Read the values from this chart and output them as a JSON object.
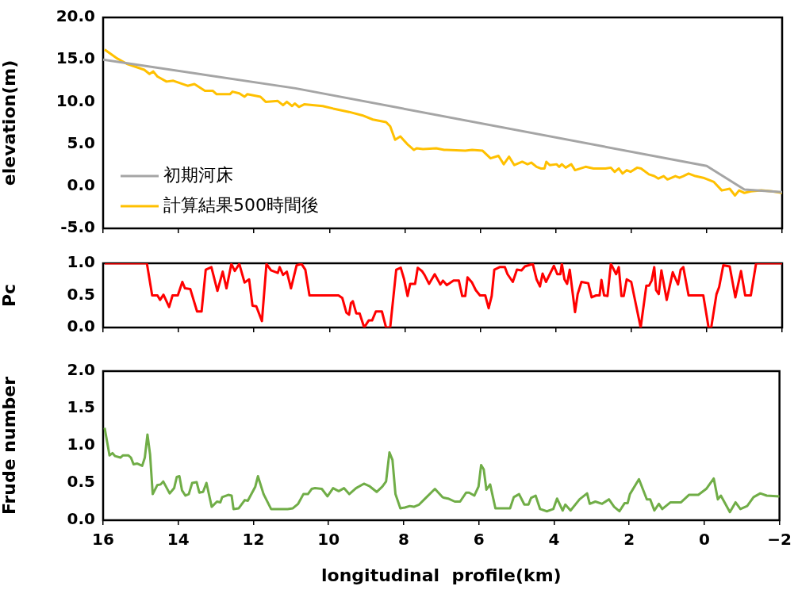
{
  "chart_data": [
    {
      "type": "line",
      "ylabel": "elevation(m)",
      "xlim": [
        16,
        -2
      ],
      "xticks": [
        16,
        14,
        12,
        10,
        8,
        6,
        4,
        2,
        0,
        -2
      ],
      "ylim": [
        -5,
        20
      ],
      "yticks": [
        {
          "value": -5,
          "label": "-5.0"
        },
        {
          "value": 0,
          "label": "0.0"
        },
        {
          "value": 5,
          "label": "5.0"
        },
        {
          "value": 10,
          "label": "10.0"
        },
        {
          "value": 15,
          "label": "15.0"
        },
        {
          "value": 20,
          "label": "20.0"
        }
      ],
      "tick_labels": "y",
      "legend": "bottom left",
      "series": [
        {
          "name": "初期河床",
          "color": "#a5a5a5",
          "x": [
            16,
            10.9,
            0,
            -1.0,
            -2
          ],
          "values": [
            15.0,
            11.6,
            2.4,
            -0.4,
            -0.7
          ]
        },
        {
          "name": "計算結果500時間後",
          "color": "#ffc000",
          "x": [
            15.96,
            15.65,
            15.37,
            14.91,
            14.77,
            14.67,
            14.56,
            14.32,
            14.14,
            13.76,
            13.58,
            13.3,
            13.09,
            12.99,
            12.64,
            12.57,
            12.39,
            12.25,
            12.18,
            11.83,
            11.69,
            11.37,
            11.23,
            11.13,
            10.99,
            10.92,
            10.81,
            10.67,
            10.18,
            9.9,
            9.48,
            9.13,
            8.85,
            8.5,
            8.39,
            8.26,
            8.12,
            7.94,
            7.76,
            7.69,
            7.52,
            7.17,
            6.96,
            6.89,
            6.4,
            6.22,
            5.94,
            5.73,
            5.52,
            5.38,
            5.24,
            5.1,
            4.89,
            4.75,
            4.65,
            4.51,
            4.4,
            4.3,
            4.25,
            4.16,
            3.98,
            3.91,
            3.84,
            3.74,
            3.59,
            3.49,
            3.21,
            3.0,
            2.68,
            2.54,
            2.44,
            2.33,
            2.23,
            2.12,
            2.02,
            1.84,
            1.74,
            1.53,
            1.39,
            1.28,
            1.14,
            1.04,
            0.83,
            0.72,
            0.62,
            0.48,
            0.3,
            0.09,
            -0.19,
            -0.4,
            -0.61,
            -0.75,
            -0.86,
            -1.0,
            -1.17,
            -1.45,
            -1.73,
            -2
          ],
          "values": [
            16.2,
            15.2,
            14.5,
            13.8,
            13.3,
            13.6,
            13.0,
            12.4,
            12.5,
            11.9,
            12.1,
            11.3,
            11.3,
            10.9,
            10.9,
            11.2,
            11.0,
            10.6,
            10.9,
            10.6,
            10.0,
            10.1,
            9.6,
            10.0,
            9.5,
            9.8,
            9.4,
            9.7,
            9.5,
            9.2,
            8.8,
            8.4,
            7.9,
            7.6,
            7.1,
            5.5,
            5.9,
            5.0,
            4.3,
            4.5,
            4.4,
            4.5,
            4.3,
            4.3,
            4.2,
            4.3,
            4.2,
            3.3,
            3.6,
            2.6,
            3.5,
            2.5,
            2.9,
            2.6,
            2.8,
            2.3,
            2.1,
            2.1,
            2.9,
            2.5,
            2.6,
            2.3,
            2.6,
            2.2,
            2.6,
            1.9,
            2.3,
            2.1,
            2.1,
            2.2,
            1.7,
            2.1,
            1.5,
            1.9,
            1.7,
            2.2,
            2.1,
            1.4,
            1.2,
            0.9,
            1.2,
            0.8,
            1.2,
            1.0,
            1.2,
            1.5,
            1.2,
            1.0,
            0.5,
            -0.5,
            -0.3,
            -1.1,
            -0.5,
            -0.8,
            -0.6,
            -0.5,
            -0.6,
            -0.8
          ]
        }
      ]
    },
    {
      "type": "line",
      "ylabel": "Pc",
      "xlim": [
        16,
        -2
      ],
      "xticks": [
        16,
        14,
        12,
        10,
        8,
        6,
        4,
        2,
        0,
        -2
      ],
      "ylim": [
        0,
        1
      ],
      "yticks": [
        {
          "value": 0,
          "label": "0.0"
        },
        {
          "value": 0.5,
          "label": "0.5"
        },
        {
          "value": 1,
          "label": "1.0"
        }
      ],
      "tick_labels": "y",
      "series": [
        {
          "color": "#ff0000",
          "x": [
            15.96,
            14.84,
            14.7,
            14.56,
            14.49,
            14.4,
            14.25,
            14.16,
            14.02,
            13.9,
            13.83,
            13.69,
            13.51,
            13.39,
            13.28,
            13.13,
            12.97,
            12.83,
            12.73,
            12.6,
            12.51,
            12.39,
            12.25,
            12.13,
            12.04,
            11.94,
            11.79,
            11.67,
            11.55,
            11.37,
            11.32,
            11.23,
            11.13,
            11.02,
            10.87,
            10.74,
            10.64,
            10.53,
            9.76,
            9.66,
            9.55,
            9.48,
            9.43,
            9.38,
            9.29,
            9.2,
            9.08,
            8.96,
            8.87,
            8.77,
            8.61,
            8.5,
            8.39,
            8.23,
            8.11,
            8.02,
            7.93,
            7.86,
            7.73,
            7.66,
            7.55,
            7.48,
            7.36,
            7.21,
            7.06,
            6.99,
            6.89,
            6.71,
            6.57,
            6.48,
            6.4,
            6.34,
            6.22,
            6.12,
            6.01,
            5.87,
            5.78,
            5.7,
            5.63,
            5.49,
            5.35,
            5.28,
            5.14,
            5.03,
            4.91,
            4.82,
            4.61,
            4.51,
            4.42,
            4.35,
            4.26,
            4.05,
            3.96,
            3.88,
            3.84,
            3.77,
            3.7,
            3.63,
            3.49,
            3.42,
            3.32,
            3.14,
            3.05,
            2.93,
            2.84,
            2.79,
            2.72,
            2.63,
            2.54,
            2.4,
            2.33,
            2.26,
            2.2,
            2.12,
            2.0,
            1.75,
            1.6,
            1.53,
            1.46,
            1.39,
            1.34,
            1.27,
            1.2,
            1.06,
            0.9,
            0.76,
            0.69,
            0.62,
            0.48,
            0.09,
            -0.05,
            -0.12,
            -0.26,
            -0.33,
            -0.44,
            -0.61,
            -0.76,
            -0.91,
            -1.02,
            -1.17,
            -1.31,
            -2
          ],
          "values": [
            1.0,
            1.0,
            0.5,
            0.5,
            0.43,
            0.51,
            0.32,
            0.5,
            0.5,
            0.71,
            0.61,
            0.6,
            0.25,
            0.25,
            0.9,
            0.94,
            0.57,
            0.87,
            0.61,
            0.99,
            0.88,
            0.99,
            0.7,
            0.75,
            0.34,
            0.33,
            0.1,
            0.99,
            0.89,
            0.85,
            0.94,
            0.82,
            0.87,
            0.61,
            0.97,
            0.99,
            0.9,
            0.5,
            0.5,
            0.46,
            0.23,
            0.2,
            0.38,
            0.41,
            0.22,
            0.22,
            0.0,
            0.11,
            0.11,
            0.25,
            0.25,
            0.0,
            0.0,
            0.9,
            0.93,
            0.75,
            0.49,
            0.68,
            0.68,
            0.93,
            0.88,
            0.82,
            0.68,
            0.83,
            0.67,
            0.73,
            0.66,
            0.73,
            0.73,
            0.49,
            0.49,
            0.78,
            0.7,
            0.58,
            0.5,
            0.5,
            0.3,
            0.49,
            0.9,
            0.94,
            0.94,
            0.83,
            0.71,
            0.9,
            0.89,
            0.95,
            0.99,
            0.75,
            0.64,
            0.84,
            0.71,
            0.96,
            0.83,
            0.83,
            0.99,
            0.75,
            0.68,
            0.9,
            0.24,
            0.52,
            0.71,
            0.69,
            0.47,
            0.5,
            0.5,
            0.74,
            0.5,
            0.49,
            0.99,
            0.83,
            0.94,
            0.49,
            0.49,
            0.75,
            0.71,
            0.0,
            0.65,
            0.65,
            0.73,
            0.94,
            0.58,
            0.52,
            0.89,
            0.43,
            0.86,
            0.67,
            0.9,
            0.94,
            0.5,
            0.5,
            0.0,
            0.0,
            0.52,
            0.63,
            0.97,
            0.95,
            0.47,
            0.88,
            0.5,
            0.5,
            1.0,
            1.0
          ]
        }
      ]
    },
    {
      "type": "line",
      "ylabel": "Frude number",
      "xlabel": "longitudinal  profile(km)",
      "xlim": [
        16,
        -2
      ],
      "xticks": [
        16,
        14,
        12,
        10,
        8,
        6,
        4,
        2,
        0,
        {
          "value": -2,
          "label": "−2"
        }
      ],
      "ylim": [
        0,
        2
      ],
      "yticks": [
        {
          "value": 0,
          "label": "0.0"
        },
        {
          "value": 0.5,
          "label": "0.5"
        },
        {
          "value": 1,
          "label": "1.0"
        },
        {
          "value": 1.5,
          "label": "1.5"
        },
        {
          "value": 2,
          "label": "2.0"
        }
      ],
      "series": [
        {
          "color": "#70ad47",
          "x": [
            15.96,
            15.83,
            15.75,
            15.68,
            15.54,
            15.47,
            15.33,
            15.26,
            15.19,
            15.09,
            14.96,
            14.89,
            14.82,
            14.75,
            14.68,
            14.56,
            14.47,
            14.4,
            14.23,
            14.11,
            14.04,
            13.97,
            13.9,
            13.81,
            13.72,
            13.63,
            13.51,
            13.44,
            13.34,
            13.25,
            13.11,
            12.97,
            12.88,
            12.83,
            12.67,
            12.58,
            12.53,
            12.39,
            12.23,
            12.15,
            11.95,
            11.88,
            11.73,
            11.53,
            11.09,
            10.95,
            10.81,
            10.67,
            10.55,
            10.45,
            10.36,
            10.18,
            10.03,
            9.88,
            9.73,
            9.59,
            9.45,
            9.27,
            9.06,
            8.92,
            8.72,
            8.57,
            8.47,
            8.38,
            8.3,
            8.22,
            8.09,
            7.97,
            7.84,
            7.73,
            7.59,
            7.45,
            7.17,
            6.97,
            6.92,
            6.82,
            6.64,
            6.5,
            6.34,
            6.26,
            6.12,
            6.01,
            5.94,
            5.87,
            5.8,
            5.7,
            5.56,
            5.17,
            5.07,
            4.93,
            4.79,
            4.68,
            4.61,
            4.49,
            4.37,
            4.19,
            4.02,
            3.92,
            3.77,
            3.7,
            3.56,
            3.32,
            3.12,
            3.05,
            2.9,
            2.72,
            2.54,
            2.4,
            2.26,
            2.12,
            2.04,
            1.98,
            1.74,
            1.53,
            1.44,
            1.33,
            1.21,
            1.12,
            0.9,
            0.62,
            0.41,
            0.16,
            -0.05,
            -0.25,
            -0.36,
            -0.44,
            -0.68,
            -0.83,
            -0.96,
            -1.14,
            -1.31,
            -1.49,
            -1.66,
            -2
          ],
          "values": [
            1.24,
            0.87,
            0.9,
            0.86,
            0.84,
            0.87,
            0.87,
            0.84,
            0.75,
            0.76,
            0.73,
            0.84,
            1.15,
            0.88,
            0.35,
            0.47,
            0.48,
            0.52,
            0.36,
            0.43,
            0.58,
            0.59,
            0.4,
            0.33,
            0.35,
            0.5,
            0.51,
            0.37,
            0.38,
            0.5,
            0.18,
            0.25,
            0.24,
            0.31,
            0.34,
            0.33,
            0.15,
            0.16,
            0.27,
            0.26,
            0.45,
            0.59,
            0.35,
            0.15,
            0.15,
            0.16,
            0.22,
            0.35,
            0.35,
            0.42,
            0.43,
            0.42,
            0.32,
            0.43,
            0.39,
            0.43,
            0.35,
            0.43,
            0.49,
            0.46,
            0.38,
            0.45,
            0.52,
            0.91,
            0.81,
            0.35,
            0.16,
            0.17,
            0.19,
            0.18,
            0.21,
            0.28,
            0.42,
            0.31,
            0.3,
            0.29,
            0.25,
            0.25,
            0.37,
            0.37,
            0.33,
            0.45,
            0.74,
            0.68,
            0.41,
            0.48,
            0.16,
            0.16,
            0.31,
            0.35,
            0.21,
            0.21,
            0.3,
            0.33,
            0.15,
            0.12,
            0.15,
            0.29,
            0.13,
            0.21,
            0.13,
            0.28,
            0.36,
            0.22,
            0.25,
            0.22,
            0.28,
            0.18,
            0.12,
            0.23,
            0.23,
            0.35,
            0.55,
            0.28,
            0.28,
            0.13,
            0.22,
            0.15,
            0.24,
            0.24,
            0.34,
            0.34,
            0.42,
            0.56,
            0.28,
            0.33,
            0.11,
            0.24,
            0.15,
            0.19,
            0.31,
            0.36,
            0.33,
            0.32
          ]
        }
      ]
    }
  ]
}
